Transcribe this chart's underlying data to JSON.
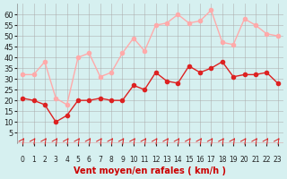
{
  "x": [
    0,
    1,
    2,
    3,
    4,
    5,
    6,
    7,
    8,
    9,
    10,
    11,
    12,
    13,
    14,
    15,
    16,
    17,
    18,
    19,
    20,
    21,
    22,
    23
  ],
  "wind_avg": [
    21,
    20,
    18,
    10,
    13,
    20,
    20,
    21,
    20,
    20,
    27,
    25,
    33,
    29,
    28,
    36,
    33,
    35,
    38,
    31,
    32,
    32,
    33,
    28
  ],
  "wind_gust": [
    32,
    32,
    38,
    21,
    18,
    40,
    42,
    31,
    33,
    42,
    49,
    43,
    55,
    56,
    60,
    56,
    57,
    62,
    47,
    46,
    58,
    55,
    51,
    50
  ],
  "avg_color": "#dd2222",
  "gust_color": "#ffaaaa",
  "bg_color": "#d6f0f0",
  "grid_color": "#aaaaaa",
  "xlabel": "Vent moyen/en rafales ( km/h )",
  "xlabel_color": "#cc0000",
  "ylim": [
    0,
    65
  ],
  "yticks": [
    5,
    10,
    15,
    20,
    25,
    30,
    35,
    40,
    45,
    50,
    55,
    60
  ],
  "title_color": "#cc0000",
  "marker_size": 3,
  "linewidth": 1.0
}
